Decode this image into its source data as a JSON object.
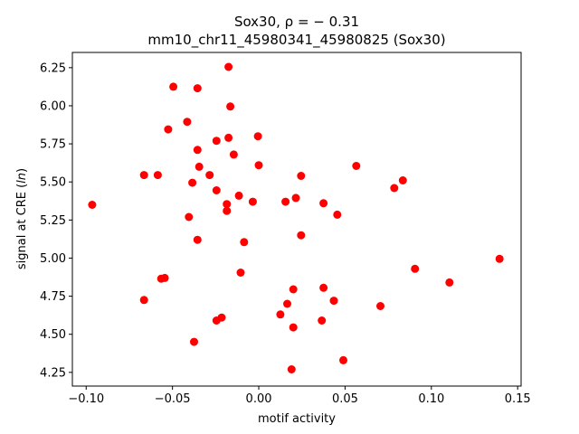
{
  "chart_data": {
    "type": "scatter",
    "title_line1": "Sox30, ρ = − 0.31",
    "title_line2": "mm10_chr11_45980341_45980825 (Sox30)",
    "xlabel": "motif activity",
    "ylabel_prefix": "signal at CRE (",
    "ylabel_italic": "ln",
    "ylabel_suffix": ")",
    "xlim": [
      -0.108,
      0.152
    ],
    "ylim": [
      4.16,
      6.35
    ],
    "xticks": [
      {
        "value": -0.1,
        "label": "−0.10"
      },
      {
        "value": -0.05,
        "label": "−0.05"
      },
      {
        "value": 0.0,
        "label": "0.00"
      },
      {
        "value": 0.05,
        "label": "0.05"
      },
      {
        "value": 0.1,
        "label": "0.10"
      },
      {
        "value": 0.15,
        "label": "0.15"
      }
    ],
    "yticks": [
      {
        "value": 4.25,
        "label": "4.25"
      },
      {
        "value": 4.5,
        "label": "4.50"
      },
      {
        "value": 4.75,
        "label": "4.75"
      },
      {
        "value": 5.0,
        "label": "5.00"
      },
      {
        "value": 5.25,
        "label": "5.25"
      },
      {
        "value": 5.5,
        "label": "5.50"
      },
      {
        "value": 5.75,
        "label": "5.75"
      },
      {
        "value": 6.0,
        "label": "6.00"
      },
      {
        "value": 6.25,
        "label": "6.25"
      }
    ],
    "point_color": "#ff0000",
    "grid": false,
    "points": [
      {
        "x": -0.0175,
        "y": 6.255
      },
      {
        "x": -0.0495,
        "y": 6.125
      },
      {
        "x": -0.0355,
        "y": 6.115
      },
      {
        "x": -0.0165,
        "y": 5.995
      },
      {
        "x": -0.0415,
        "y": 5.895
      },
      {
        "x": -0.0525,
        "y": 5.845
      },
      {
        "x": -0.0005,
        "y": 5.8
      },
      {
        "x": -0.0175,
        "y": 5.79
      },
      {
        "x": -0.0245,
        "y": 5.77
      },
      {
        "x": -0.0355,
        "y": 5.71
      },
      {
        "x": -0.0145,
        "y": 5.68
      },
      {
        "x": 0.0,
        "y": 5.61
      },
      {
        "x": -0.0345,
        "y": 5.6
      },
      {
        "x": 0.0565,
        "y": 5.605
      },
      {
        "x": -0.0665,
        "y": 5.545
      },
      {
        "x": -0.0585,
        "y": 5.545
      },
      {
        "x": -0.0285,
        "y": 5.545
      },
      {
        "x": 0.0245,
        "y": 5.54
      },
      {
        "x": 0.0835,
        "y": 5.51
      },
      {
        "x": -0.0385,
        "y": 5.495
      },
      {
        "x": 0.0785,
        "y": 5.46
      },
      {
        "x": -0.0245,
        "y": 5.445
      },
      {
        "x": -0.0115,
        "y": 5.41
      },
      {
        "x": 0.0215,
        "y": 5.395
      },
      {
        "x": -0.0035,
        "y": 5.37
      },
      {
        "x": 0.0155,
        "y": 5.37
      },
      {
        "x": 0.0375,
        "y": 5.36
      },
      {
        "x": -0.0185,
        "y": 5.355
      },
      {
        "x": -0.0965,
        "y": 5.35
      },
      {
        "x": -0.0185,
        "y": 5.31
      },
      {
        "x": 0.0455,
        "y": 5.285
      },
      {
        "x": -0.0405,
        "y": 5.27
      },
      {
        "x": 0.0245,
        "y": 5.15
      },
      {
        "x": -0.0355,
        "y": 5.12
      },
      {
        "x": -0.0085,
        "y": 5.105
      },
      {
        "x": 0.1395,
        "y": 4.995
      },
      {
        "x": 0.0905,
        "y": 4.93
      },
      {
        "x": -0.0105,
        "y": 4.905
      },
      {
        "x": -0.0545,
        "y": 4.87
      },
      {
        "x": -0.0565,
        "y": 4.865
      },
      {
        "x": 0.1105,
        "y": 4.84
      },
      {
        "x": 0.0375,
        "y": 4.805
      },
      {
        "x": 0.02,
        "y": 4.795
      },
      {
        "x": -0.0665,
        "y": 4.725
      },
      {
        "x": 0.0435,
        "y": 4.72
      },
      {
        "x": 0.0165,
        "y": 4.7
      },
      {
        "x": 0.0705,
        "y": 4.685
      },
      {
        "x": 0.0125,
        "y": 4.63
      },
      {
        "x": -0.0215,
        "y": 4.61
      },
      {
        "x": -0.0245,
        "y": 4.59
      },
      {
        "x": 0.0365,
        "y": 4.59
      },
      {
        "x": 0.02,
        "y": 4.545
      },
      {
        "x": -0.0375,
        "y": 4.45
      },
      {
        "x": 0.049,
        "y": 4.33
      },
      {
        "x": 0.019,
        "y": 4.27
      }
    ]
  }
}
